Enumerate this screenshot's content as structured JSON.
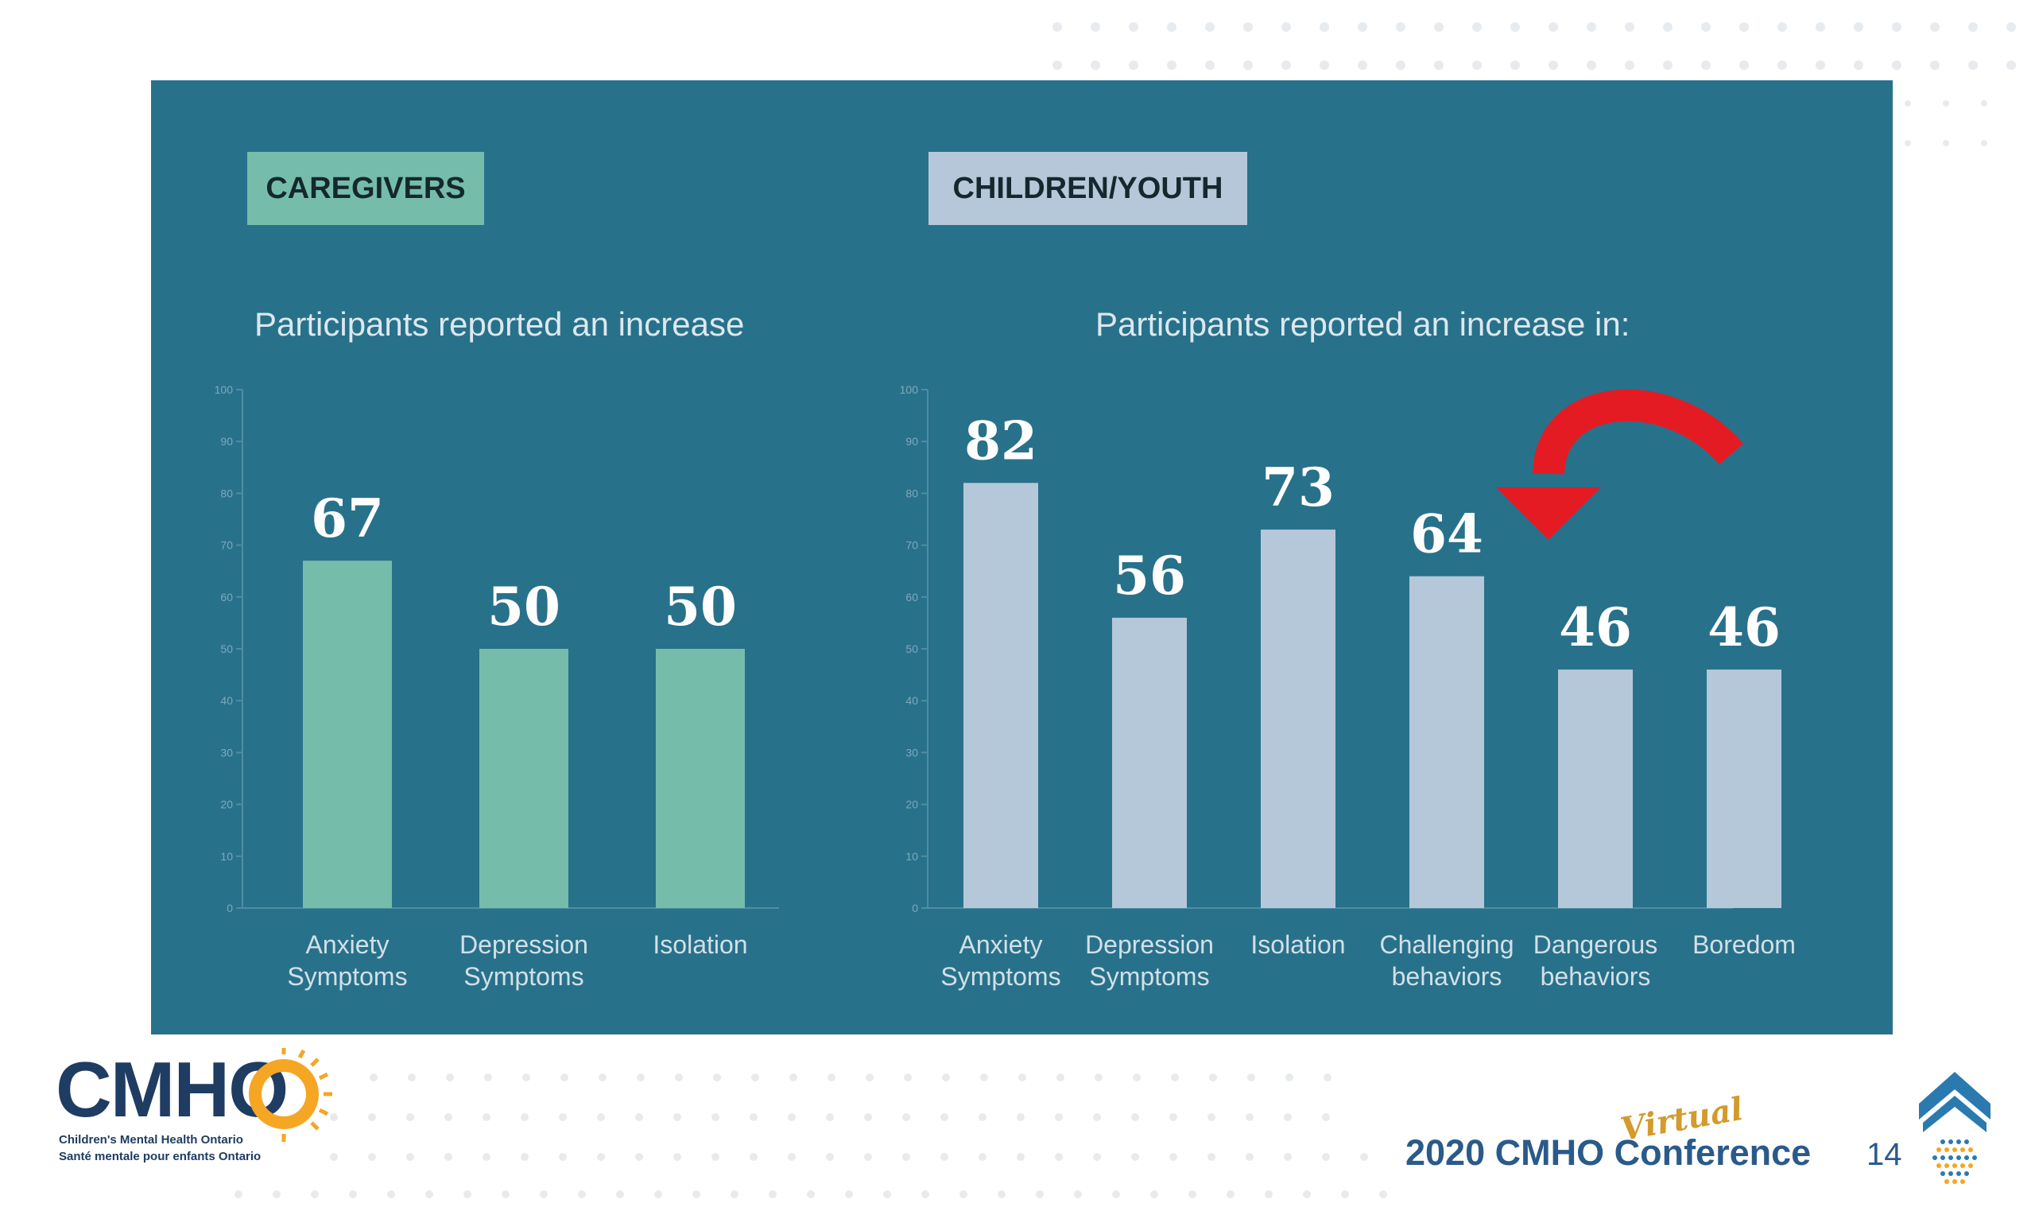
{
  "slide": {
    "caregivers_tag": "CAREGIVERS",
    "children_tag": "CHILDREN/YOUTH",
    "footer": {
      "logo_text": "CMHO",
      "logo_sub_en": "Children's Mental Health Ontario",
      "logo_sub_fr": "Santé mentale pour enfants Ontario",
      "conference": "2020 CMHO Conference",
      "conference_tag": "Virtual",
      "page_number": "14"
    },
    "colors": {
      "panel": "#28718b",
      "caregiver_bar": "#76bcaa",
      "children_bar": "#b5c8d9",
      "arrow": "#e51b24",
      "accent": "#f5a623"
    },
    "annotation_icon": "red-curved-arrow-icon"
  },
  "chart_data": [
    {
      "type": "bar",
      "title": "Participants reported an increase",
      "categories": [
        "Anxiety\nSymptoms",
        "Depression\nSymptoms",
        "Isolation"
      ],
      "values": [
        67,
        50,
        50
      ],
      "data_labels": [
        "67",
        "50",
        "50"
      ],
      "yticks": [
        "0",
        "10",
        "20",
        "30",
        "40",
        "50",
        "60",
        "70",
        "80",
        "90",
        "100"
      ],
      "ylim": [
        0,
        100
      ],
      "color": "#76bcaa"
    },
    {
      "type": "bar",
      "title": "Participants reported an increase in:",
      "categories": [
        "Anxiety\nSymptoms",
        "Depression\nSymptoms",
        "Isolation",
        "Challenging\nbehaviors",
        "Dangerous\nbehaviors",
        "Boredom"
      ],
      "values": [
        82,
        56,
        73,
        64,
        46,
        46
      ],
      "data_labels": [
        "82",
        "56",
        "73",
        "64",
        "46",
        "46"
      ],
      "yticks": [
        "0",
        "10",
        "20",
        "30",
        "40",
        "50",
        "60",
        "70",
        "80",
        "90",
        "100"
      ],
      "ylim": [
        0,
        100
      ],
      "color": "#b5c8d9"
    }
  ]
}
